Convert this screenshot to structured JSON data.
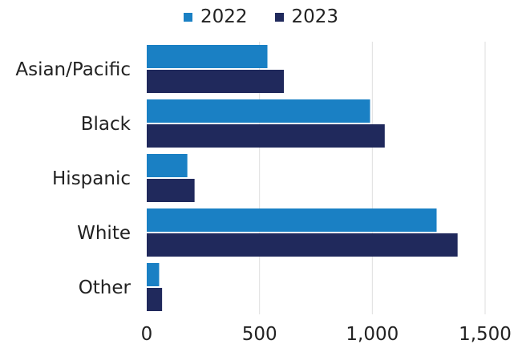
{
  "chart_data": {
    "type": "bar",
    "orientation": "horizontal",
    "categories": [
      "Asian/Pacific",
      "Black",
      "Hispanic",
      "White",
      "Other"
    ],
    "series": [
      {
        "name": "2022",
        "color": "#1a80c4",
        "values": [
          535,
          990,
          180,
          1285,
          55
        ]
      },
      {
        "name": "2023",
        "color": "#20295c",
        "values": [
          608,
          1055,
          212,
          1378,
          68
        ]
      }
    ],
    "xlim": [
      0,
      1500
    ],
    "xticks": [
      "0",
      "500",
      "1,000",
      "1,500"
    ],
    "grid": "vertical",
    "legend": "top-center",
    "title": "",
    "xlabel": "",
    "ylabel": ""
  }
}
